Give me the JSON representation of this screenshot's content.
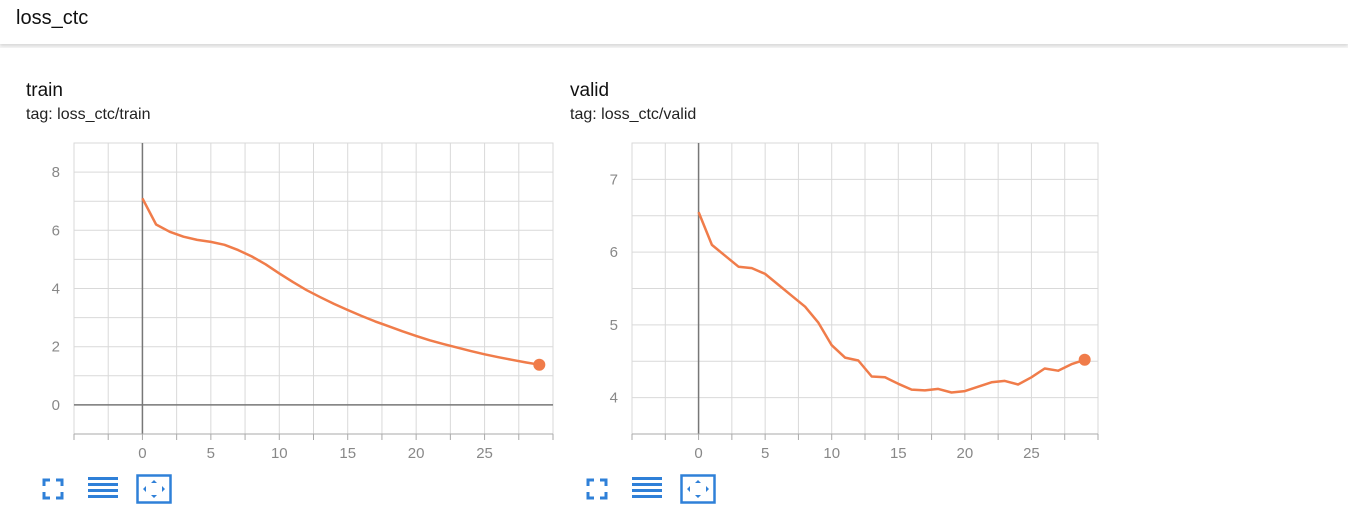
{
  "page": {
    "title": "loss_ctc"
  },
  "icons": {
    "expand": "fullscreen-icon",
    "data": "data-table-icon",
    "fit": "fit-domain-icon"
  },
  "colors": {
    "line": "#f07c4a",
    "dot": "#f07c4a",
    "grid": "#d9d9d9",
    "axis": "#777777"
  },
  "chart_data": [
    {
      "type": "line",
      "title": "train",
      "subtitle": "tag: loss_ctc/train",
      "xlim": [
        -5,
        30
      ],
      "ylim": [
        -1,
        9
      ],
      "x_ticks": [
        0,
        5,
        10,
        15,
        20,
        25
      ],
      "y_ticks": [
        0,
        2,
        4,
        6,
        8
      ],
      "grid": true,
      "series": [
        {
          "x": [
            0,
            1,
            2,
            3,
            4,
            5,
            6,
            7,
            8,
            9,
            10,
            11,
            12,
            13,
            14,
            15,
            16,
            17,
            18,
            19,
            20,
            21,
            22,
            23,
            24,
            25,
            26,
            27,
            28,
            29
          ],
          "values": [
            7.1,
            6.2,
            5.95,
            5.78,
            5.67,
            5.6,
            5.5,
            5.32,
            5.1,
            4.83,
            4.52,
            4.22,
            3.94,
            3.7,
            3.47,
            3.26,
            3.06,
            2.87,
            2.7,
            2.53,
            2.37,
            2.22,
            2.09,
            1.97,
            1.85,
            1.74,
            1.64,
            1.55,
            1.46,
            1.38
          ]
        }
      ]
    },
    {
      "type": "line",
      "title": "valid",
      "subtitle": "tag: loss_ctc/valid",
      "xlim": [
        -5,
        30
      ],
      "ylim": [
        3.5,
        7.5
      ],
      "x_ticks": [
        0,
        5,
        10,
        15,
        20,
        25
      ],
      "y_ticks": [
        4,
        5,
        6,
        7
      ],
      "grid": true,
      "series": [
        {
          "x": [
            0,
            1,
            2,
            3,
            4,
            5,
            6,
            7,
            8,
            9,
            10,
            11,
            12,
            13,
            14,
            15,
            16,
            17,
            18,
            19,
            20,
            21,
            22,
            23,
            24,
            25,
            26,
            27,
            28,
            29
          ],
          "values": [
            6.55,
            6.1,
            5.95,
            5.8,
            5.78,
            5.7,
            5.55,
            5.4,
            5.25,
            5.03,
            4.72,
            4.55,
            4.51,
            4.29,
            4.28,
            4.19,
            4.11,
            4.1,
            4.12,
            4.07,
            4.09,
            4.15,
            4.21,
            4.23,
            4.18,
            4.28,
            4.4,
            4.37,
            4.46,
            4.52
          ]
        }
      ]
    }
  ]
}
